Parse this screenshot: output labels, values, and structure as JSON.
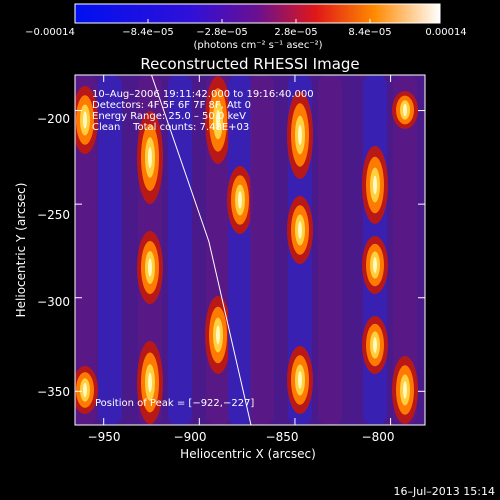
{
  "chart_data": {
    "type": "heatmap",
    "title": "Reconstructed RHESSI Image",
    "xlabel": "Heliocentric X (arcsec)",
    "ylabel": "Heliocentric Y (arcsec)",
    "xlim": [
      -965,
      -782
    ],
    "ylim": [
      -368,
      -181
    ],
    "xticks": [
      -950,
      -900,
      -850,
      -800
    ],
    "xtick_labels": [
      "−950",
      "−900",
      "−850",
      "−800"
    ],
    "yticks": [
      -200,
      -250,
      -300,
      -350
    ],
    "ytick_labels": [
      "−200",
      "−250",
      "−300",
      "−350"
    ],
    "colorbar": {
      "min": -0.00014,
      "max": 0.00014,
      "tick_labels": [
        "−0.00014",
        "−8.4e−05",
        "−2.8e−05",
        "2.8e−05",
        "8.4e−05",
        "0.00014"
      ],
      "unit_label": "(photons cm⁻² s⁻¹ asec⁻²)"
    },
    "annotations": {
      "time_range": "10–Aug–2006 19:11:42.000 to 19:16:40.000",
      "detectors": "Detectors: 4F 5F 6F 7F 8F, Att 0",
      "energy_range": "Energy Range: 25.0 – 50.0 keV",
      "method": "Clean    Total counts: 7.48E+03",
      "peak": "Position of Peak = [−922,−227]"
    },
    "peak_position": [
      -922,
      -227
    ],
    "total_counts": 7480,
    "energy_range_kev": [
      25.0,
      50.0
    ],
    "limb_arc": [
      [
        -925,
        -181
      ],
      [
        -895,
        -270
      ],
      [
        -873,
        -368
      ]
    ],
    "footer_timestamp": "16–Jul–2013 15:14"
  }
}
